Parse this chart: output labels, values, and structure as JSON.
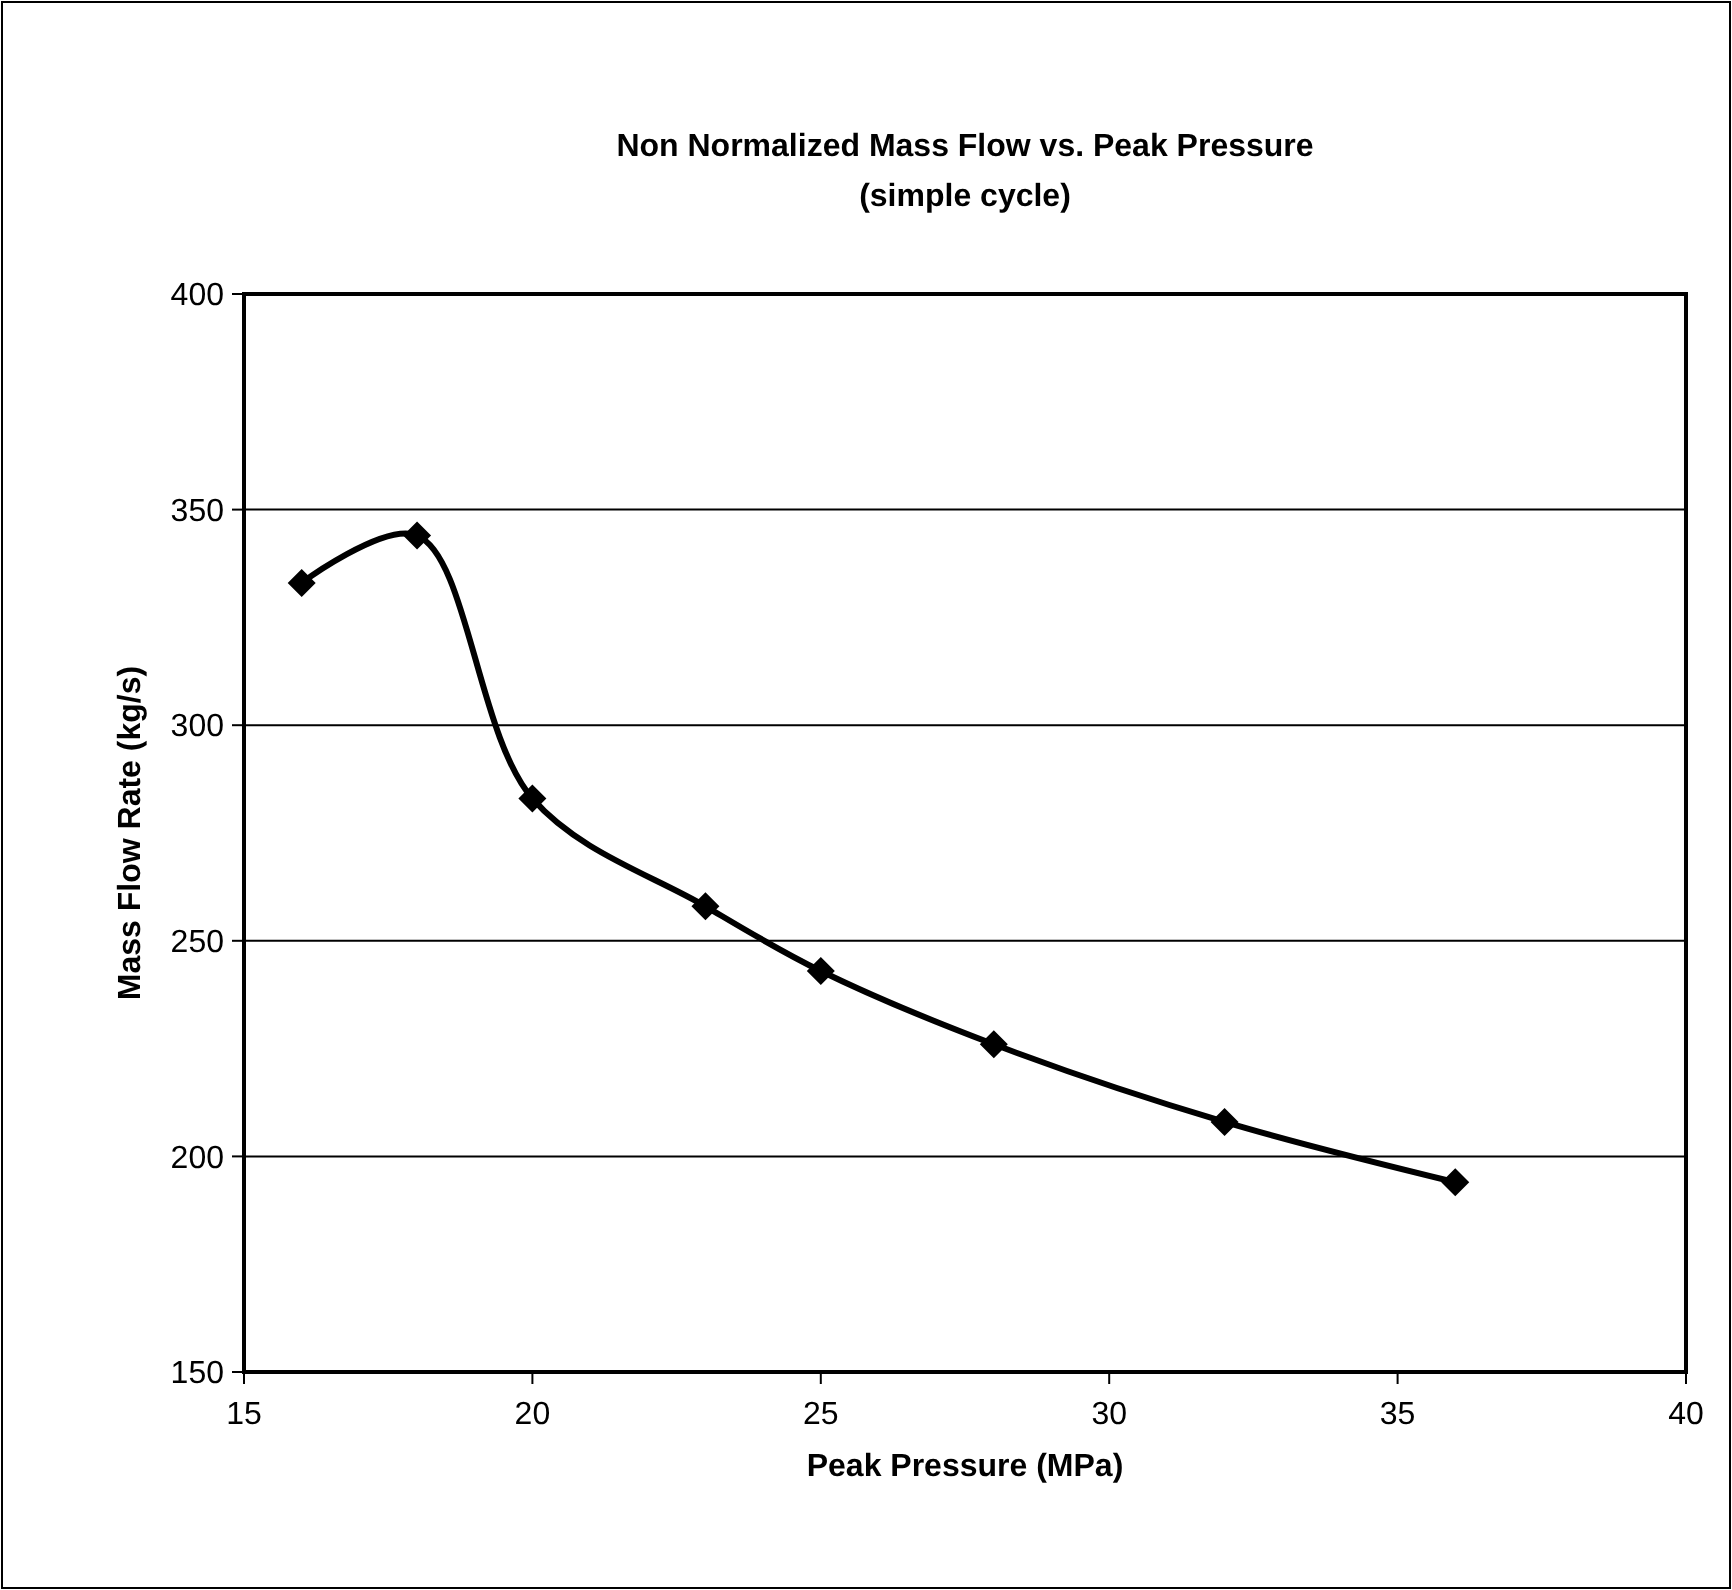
{
  "chart_data": {
    "type": "line",
    "title": "Non Normalized Mass Flow vs. Peak Pressure",
    "subtitle": "(simple cycle)",
    "xlabel": "Peak Pressure (MPa)",
    "ylabel": "Mass Flow Rate (kg/s)",
    "x": [
      16,
      18,
      20,
      23,
      25,
      28,
      32,
      36
    ],
    "series": [
      {
        "color": "#000000",
        "values": [
          333,
          344,
          283,
          258,
          243,
          226,
          208,
          194
        ]
      }
    ],
    "xlim": [
      15,
      40
    ],
    "xticks": [
      15,
      20,
      25,
      30,
      35,
      40
    ],
    "ylim": [
      150,
      400
    ],
    "yticks": [
      150,
      200,
      250,
      300,
      350,
      400
    ],
    "grid": "y",
    "marker": "diamond",
    "line_style": "solid"
  }
}
